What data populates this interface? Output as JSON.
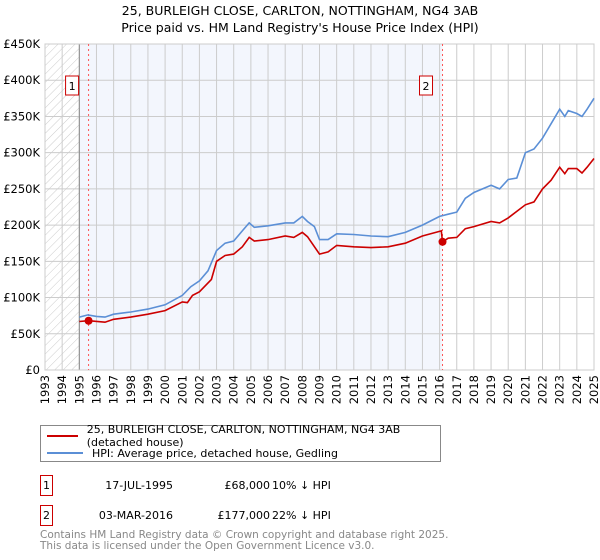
{
  "title_line1": "25, BURLEIGH CLOSE, CARLTON, NOTTINGHAM, NG4 3AB",
  "title_line2": "Price paid vs. HM Land Registry's House Price Index (HPI)",
  "chart_data": {
    "type": "line",
    "title": "25, BURLEIGH CLOSE, CARLTON, NOTTINGHAM, NG4 3AB — Price paid vs. HM Land Registry's House Price Index (HPI)",
    "xlim": [
      1993,
      2025
    ],
    "ylim": [
      0,
      450000
    ],
    "grid": true,
    "x_ticks": [
      "1993",
      "1994",
      "1995",
      "1996",
      "1997",
      "1998",
      "1999",
      "2000",
      "2001",
      "2002",
      "2003",
      "2004",
      "2005",
      "2006",
      "2007",
      "2008",
      "2009",
      "2010",
      "2011",
      "2012",
      "2013",
      "2014",
      "2015",
      "2016",
      "2017",
      "2018",
      "2019",
      "2020",
      "2021",
      "2022",
      "2023",
      "2024",
      "2025"
    ],
    "y_ticks": [
      {
        "v": 0,
        "label": "£0"
      },
      {
        "v": 50000,
        "label": "£50K"
      },
      {
        "v": 100000,
        "label": "£100K"
      },
      {
        "v": 150000,
        "label": "£150K"
      },
      {
        "v": 200000,
        "label": "£200K"
      },
      {
        "v": 250000,
        "label": "£250K"
      },
      {
        "v": 300000,
        "label": "£300K"
      },
      {
        "v": 350000,
        "label": "£350K"
      },
      {
        "v": 400000,
        "label": "£400K"
      },
      {
        "v": 450000,
        "label": "£450K"
      }
    ],
    "hatched_range": [
      1993,
      1995
    ],
    "shaded_range": [
      1995,
      2016.17
    ],
    "series": [
      {
        "name": "25, BURLEIGH CLOSE, CARLTON, NOTTINGHAM, NG4 3AB (detached house)",
        "color": "#cc0000",
        "x": [
          1995,
          1995.54,
          1996.5,
          1997,
          1998,
          1999,
          2000,
          2001,
          2001.3,
          2001.6,
          2002,
          2002.7,
          2003,
          2003.5,
          2004,
          2004.5,
          2004.9,
          2005.2,
          2006,
          2007,
          2007.5,
          2008,
          2008.3,
          2009,
          2009.5,
          2010,
          2011,
          2012,
          2013,
          2014,
          2015,
          2016.1,
          2016.17,
          2016.5,
          2017,
          2017.5,
          2018,
          2019,
          2019.5,
          2020,
          2021,
          2021.5,
          2022,
          2022.5,
          2023,
          2023.3,
          2023.5,
          2024,
          2024.3,
          2024.6,
          2025
        ],
        "y": [
          67000,
          68000,
          66000,
          70000,
          73000,
          77000,
          82000,
          94000,
          93000,
          103000,
          108000,
          125000,
          150000,
          158000,
          160000,
          170000,
          183000,
          178000,
          180000,
          185000,
          183000,
          190000,
          184000,
          160000,
          163000,
          172000,
          170000,
          169000,
          170000,
          175000,
          185000,
          192000,
          177000,
          182000,
          183000,
          195000,
          198000,
          205000,
          203000,
          210000,
          228000,
          232000,
          250000,
          262000,
          280000,
          271000,
          278000,
          278000,
          272000,
          280000,
          292000
        ]
      },
      {
        "name": "HPI: Average price, detached house, Gedling",
        "color": "#5b8fd6",
        "x": [
          1995,
          1995.5,
          1996,
          1996.5,
          1997,
          1998,
          1999,
          2000,
          2001,
          2001.5,
          2002,
          2002.5,
          2003,
          2003.5,
          2004,
          2004.5,
          2004.9,
          2005.2,
          2006,
          2007,
          2007.5,
          2008,
          2008.3,
          2008.7,
          2009,
          2009.5,
          2010,
          2011,
          2012,
          2013,
          2014,
          2015,
          2016,
          2016.5,
          2017,
          2017.5,
          2018,
          2019,
          2019.5,
          2020,
          2020.5,
          2021,
          2021.5,
          2022,
          2022.5,
          2023,
          2023.3,
          2023.5,
          2024,
          2024.3,
          2024.6,
          2025
        ],
        "y": [
          73000,
          76000,
          74000,
          73000,
          77000,
          80000,
          84000,
          90000,
          103000,
          115000,
          123000,
          137000,
          165000,
          175000,
          178000,
          192000,
          203000,
          197000,
          199000,
          203000,
          203000,
          212000,
          205000,
          198000,
          180000,
          180000,
          188000,
          187000,
          185000,
          184000,
          190000,
          200000,
          212000,
          215000,
          218000,
          237000,
          245000,
          255000,
          250000,
          263000,
          265000,
          300000,
          305000,
          320000,
          340000,
          360000,
          350000,
          358000,
          354000,
          350000,
          360000,
          375000
        ]
      }
    ],
    "sales": [
      {
        "id": "1",
        "x": 1995.54,
        "y": 68000,
        "date": "17-JUL-1995",
        "price": "£68,000",
        "hpi_diff": "10% ↓ HPI"
      },
      {
        "id": "2",
        "x": 2016.17,
        "y": 177000,
        "date": "03-MAR-2016",
        "price": "£177,000",
        "hpi_diff": "22% ↓ HPI"
      }
    ]
  },
  "legend": {
    "property": "25, BURLEIGH CLOSE, CARLTON, NOTTINGHAM, NG4 3AB (detached house)",
    "hpi": "HPI: Average price, detached house, Gedling"
  },
  "footer": {
    "line1": "Contains HM Land Registry data © Crown copyright and database right 2025.",
    "line2": "This data is licensed under the Open Government Licence v3.0."
  }
}
